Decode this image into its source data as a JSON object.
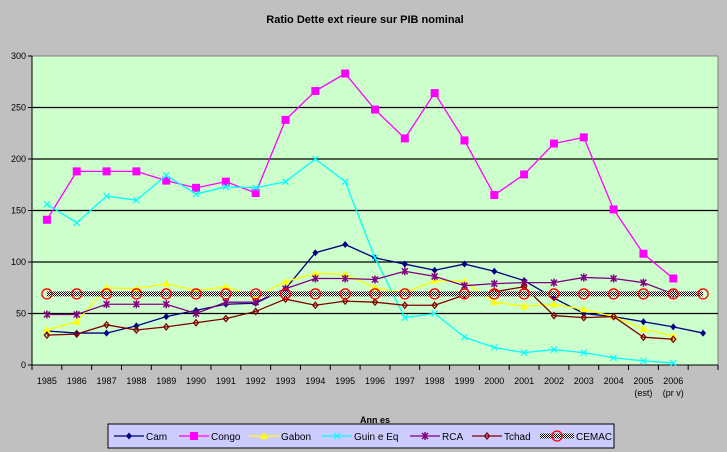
{
  "chart_data": {
    "type": "line",
    "title": "Ratio Dette ext  rieure sur PIB nominal",
    "xlabel": "Ann es",
    "ylabel": "",
    "ylim": [
      0,
      300
    ],
    "yticks": [
      "0",
      "50",
      "100",
      "150",
      "200",
      "250",
      "300"
    ],
    "grid": true,
    "legend_position": "bottom",
    "categories": [
      "1985",
      "1986",
      "1987",
      "1988",
      "1989",
      "1990",
      "1991",
      "1992",
      "1993",
      "1994",
      "1995",
      "1996",
      "1997",
      "1998",
      "1999",
      "2000",
      "2001",
      "2002",
      "2003",
      "2004",
      "2005",
      "2006",
      ""
    ],
    "category_sublabels": [
      "",
      "",
      "",
      "",
      "",
      "",
      "",
      "",
      "",
      "",
      "",
      "",
      "",
      "",
      "",
      "",
      "",
      "",
      "",
      "",
      "(est)",
      "(pr v)",
      ""
    ],
    "series": [
      {
        "name": "Cam",
        "color": "#000080",
        "marker": "diamond",
        "values": [
          33,
          31,
          31,
          38,
          47,
          53,
          59,
          60,
          74,
          109,
          117,
          104,
          98,
          92,
          98,
          91,
          82,
          65,
          50,
          47,
          42,
          37,
          31
        ]
      },
      {
        "name": "Congo",
        "color": "#ff00ff",
        "marker": "square",
        "values": [
          141,
          188,
          188,
          188,
          179,
          172,
          178,
          167,
          238,
          266,
          283,
          248,
          220,
          264,
          218,
          165,
          185,
          215,
          221,
          151,
          108,
          84,
          null
        ]
      },
      {
        "name": "Gabon",
        "color": "#ffff00",
        "marker": "triangle",
        "values": [
          34,
          42,
          75,
          74,
          79,
          72,
          76,
          66,
          81,
          89,
          88,
          75,
          70,
          82,
          81,
          61,
          57,
          59,
          54,
          47,
          35,
          28,
          null
        ]
      },
      {
        "name": "Guin e Eq",
        "color": "#00ffff",
        "marker": "x",
        "values": [
          156,
          138,
          164,
          160,
          184,
          166,
          173,
          172,
          178,
          200,
          178,
          104,
          46,
          50,
          27,
          17,
          12,
          15,
          12,
          7,
          4,
          2,
          null
        ]
      },
      {
        "name": "RCA",
        "color": "#800080",
        "marker": "star",
        "values": [
          49,
          49,
          59,
          59,
          59,
          50,
          61,
          61,
          74,
          84,
          84,
          83,
          91,
          86,
          77,
          79,
          80,
          80,
          85,
          84,
          80,
          69,
          null
        ]
      },
      {
        "name": "Tchad",
        "color": "#800000",
        "marker": "smalldiamond",
        "values": [
          29,
          30,
          39,
          34,
          37,
          41,
          45,
          52,
          64,
          58,
          62,
          61,
          58,
          58,
          68,
          71,
          76,
          48,
          46,
          47,
          27,
          25,
          null
        ]
      },
      {
        "name": "CEMAC",
        "color": "#ff0000",
        "marker": "circle",
        "values": [
          69,
          69,
          69,
          69,
          69,
          69,
          69,
          69,
          69,
          69,
          69,
          69,
          69,
          69,
          69,
          69,
          69,
          69,
          69,
          69,
          69,
          69,
          69
        ]
      }
    ]
  }
}
